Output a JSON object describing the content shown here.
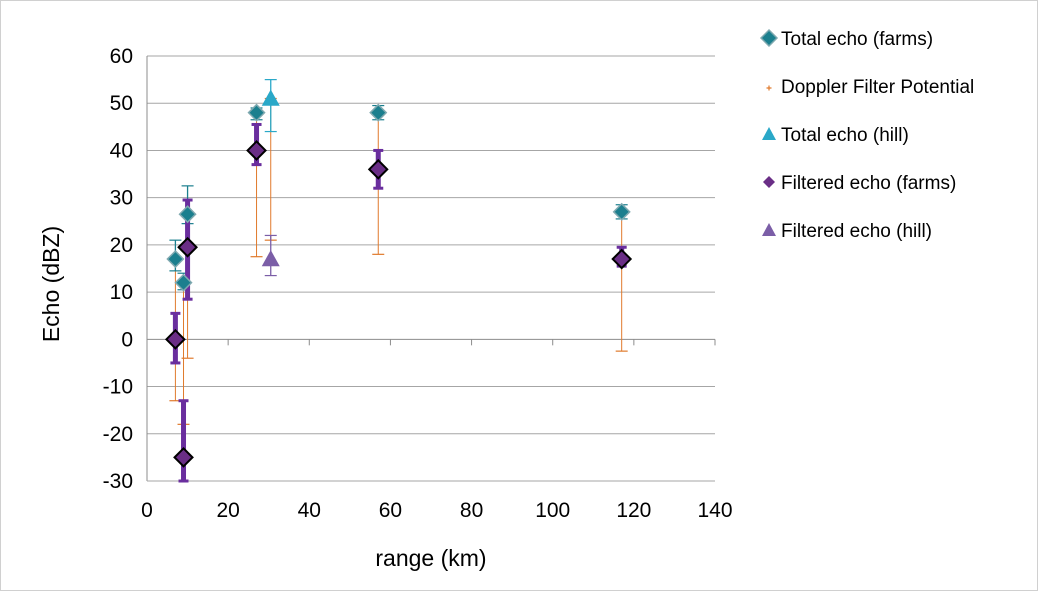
{
  "chart_data": {
    "type": "scatter",
    "xlabel": "range (km)",
    "ylabel": "Echo (dBZ)",
    "xlim": [
      0,
      140
    ],
    "ylim": [
      -30,
      60
    ],
    "xticks": [
      0,
      20,
      40,
      60,
      80,
      100,
      120,
      140
    ],
    "yticks": [
      -30,
      -20,
      -10,
      0,
      10,
      20,
      30,
      40,
      50,
      60
    ],
    "x_tick_labels": [
      "0",
      "20",
      "40",
      "60",
      "80",
      "100",
      "120",
      "140"
    ],
    "y_tick_labels": [
      "-30",
      "-20",
      "-10",
      "0",
      "10",
      "20",
      "30",
      "40",
      "50",
      "60"
    ],
    "grid": "horizontal",
    "legend_position": "right",
    "series": [
      {
        "name": "Total echo (farms)",
        "marker": "diamond",
        "color": "#1B7F8E",
        "points": [
          {
            "x": 7,
            "y": 17,
            "err_low": 2.5,
            "err_high": 4
          },
          {
            "x": 9,
            "y": 12,
            "err_low": 1.5,
            "err_high": 2
          },
          {
            "x": 10,
            "y": 26.5,
            "err_low": 2,
            "err_high": 6
          },
          {
            "x": 27,
            "y": 48,
            "err_low": 1.5,
            "err_high": 1
          },
          {
            "x": 57,
            "y": 48,
            "err_low": 1.5,
            "err_high": 1.5
          },
          {
            "x": 117,
            "y": 27,
            "err_low": 1.5,
            "err_high": 1.5
          }
        ]
      },
      {
        "name": "Doppler Filter Potential",
        "marker": "cross",
        "color": "#E07A2C",
        "points": [
          {
            "x": 7,
            "y": 17,
            "err_low": 30,
            "err_high": 0
          },
          {
            "x": 9,
            "y": 12,
            "err_low": 30,
            "err_high": 0
          },
          {
            "x": 10,
            "y": 26.5,
            "err_low": 30.5,
            "err_high": 0
          },
          {
            "x": 27,
            "y": 48,
            "err_low": 30.5,
            "err_high": 0
          },
          {
            "x": 30.5,
            "y": 51,
            "err_low": 30,
            "err_high": 0
          },
          {
            "x": 57,
            "y": 48,
            "err_low": 30,
            "err_high": 0
          },
          {
            "x": 117,
            "y": 27,
            "err_low": 29.5,
            "err_high": 0
          }
        ]
      },
      {
        "name": "Total echo (hill)",
        "marker": "triangle",
        "color": "#2AA8C8",
        "points": [
          {
            "x": 30.5,
            "y": 51,
            "err_low": 7,
            "err_high": 4
          }
        ]
      },
      {
        "name": "Filtered echo (farms)",
        "marker": "diamond-outlined",
        "color": "#6A2E86",
        "points": [
          {
            "x": 7,
            "y": 0,
            "err_low": 5,
            "err_high": 5.5
          },
          {
            "x": 9,
            "y": -25,
            "err_low": 5,
            "err_high": 12
          },
          {
            "x": 10,
            "y": 19.5,
            "err_low": 11,
            "err_high": 10
          },
          {
            "x": 27,
            "y": 40,
            "err_low": 3,
            "err_high": 5.5
          },
          {
            "x": 57,
            "y": 36,
            "err_low": 4,
            "err_high": 4
          },
          {
            "x": 117,
            "y": 17,
            "err_low": 1.5,
            "err_high": 2.5
          }
        ]
      },
      {
        "name": "Filtered echo (hill)",
        "marker": "triangle",
        "color": "#7B5EA7",
        "points": [
          {
            "x": 30.5,
            "y": 17,
            "err_low": 3.5,
            "err_high": 5
          }
        ]
      }
    ]
  }
}
